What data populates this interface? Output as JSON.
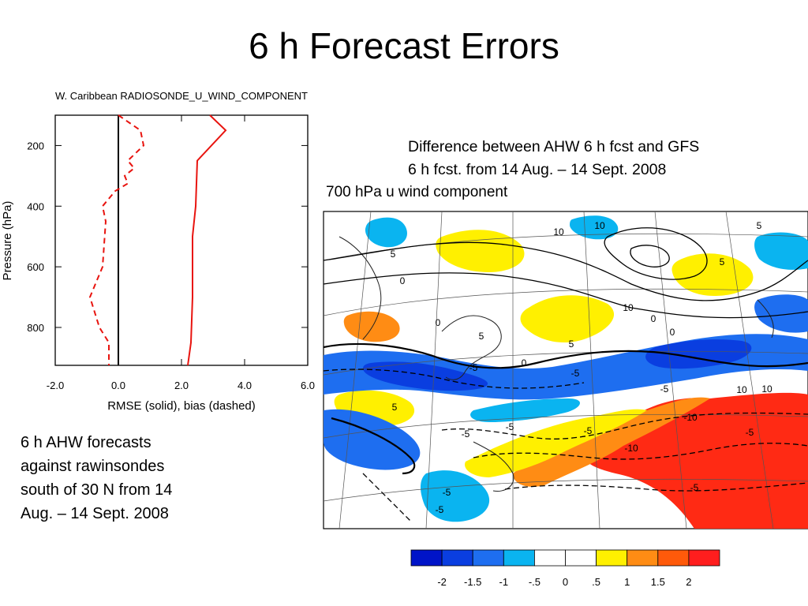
{
  "slide": {
    "title": "6 h Forecast Errors",
    "diff_caption_line1": "Difference between AHW 6 h fcst and GFS",
    "diff_caption_line2": "6 h fcst. from 14 Aug. – 14 Sept. 2008",
    "map_title": "700 hPa u wind component",
    "ahw_caption_lines": [
      "6 h AHW forecasts",
      "against rawinsondes",
      "south of 30 N from 14",
      "Aug. – 14 Sept. 2008"
    ]
  },
  "chart_data": [
    {
      "type": "line",
      "title": "W. Caribbean RADIOSONDE_U_WIND_COMPONENT",
      "xlabel": "RMSE (solid), bias (dashed)",
      "ylabel": "Pressure (hPa)",
      "xlim": [
        -2.0,
        6.0
      ],
      "ylim": [
        925,
        100
      ],
      "xticks": [
        "-2.0",
        "0.0",
        "2.0",
        "4.0",
        "6.0"
      ],
      "yticks": [
        "200",
        "400",
        "600",
        "800"
      ],
      "ytick_values": [
        200,
        400,
        600,
        800
      ],
      "xtick_values": [
        -2,
        0,
        2,
        4,
        6
      ],
      "zero_line": 0,
      "series": [
        {
          "name": "RMSE",
          "style": "solid",
          "color": "#e8140f",
          "x": [
            2.9,
            3.4,
            2.5,
            2.45,
            2.35,
            2.35,
            2.35,
            2.3,
            2.2
          ],
          "y": [
            100,
            150,
            250,
            400,
            500,
            600,
            700,
            850,
            925
          ]
        },
        {
          "name": "bias",
          "style": "dashed",
          "color": "#e8140f",
          "x": [
            0.0,
            0.7,
            0.8,
            0.3,
            0.5,
            0.2,
            0.3,
            -0.1,
            -0.5,
            -0.4,
            -0.5,
            -0.9,
            -0.6,
            -0.3,
            -0.3
          ],
          "y": [
            100,
            150,
            200,
            250,
            275,
            300,
            325,
            350,
            400,
            450,
            600,
            700,
            800,
            850,
            925
          ]
        }
      ]
    },
    {
      "type": "heatmap",
      "title": "700 hPa u wind component",
      "colorbar_ticks": [
        "-2",
        "-1.5",
        "-1",
        "-.5",
        "0",
        ".5",
        "1",
        "1.5",
        "2"
      ],
      "colorbar_colors": [
        "#0014c8",
        "#0a3ee0",
        "#1e6ef0",
        "#0ab4f0",
        "#ffffff",
        "#ffffff",
        "#fff000",
        "#ff8c14",
        "#ff5a0a",
        "#ff1e1e"
      ],
      "contour_labels": [
        "10",
        "10",
        "5",
        "10",
        "0",
        "10",
        "5",
        "0",
        "5",
        "0",
        "0",
        "-5",
        "-5",
        "-10",
        "10",
        "-5",
        "-5",
        "-10",
        "-5",
        "-5",
        "-5",
        "-5",
        "5",
        "0",
        "5",
        "5",
        "-5",
        "-5"
      ]
    }
  ]
}
